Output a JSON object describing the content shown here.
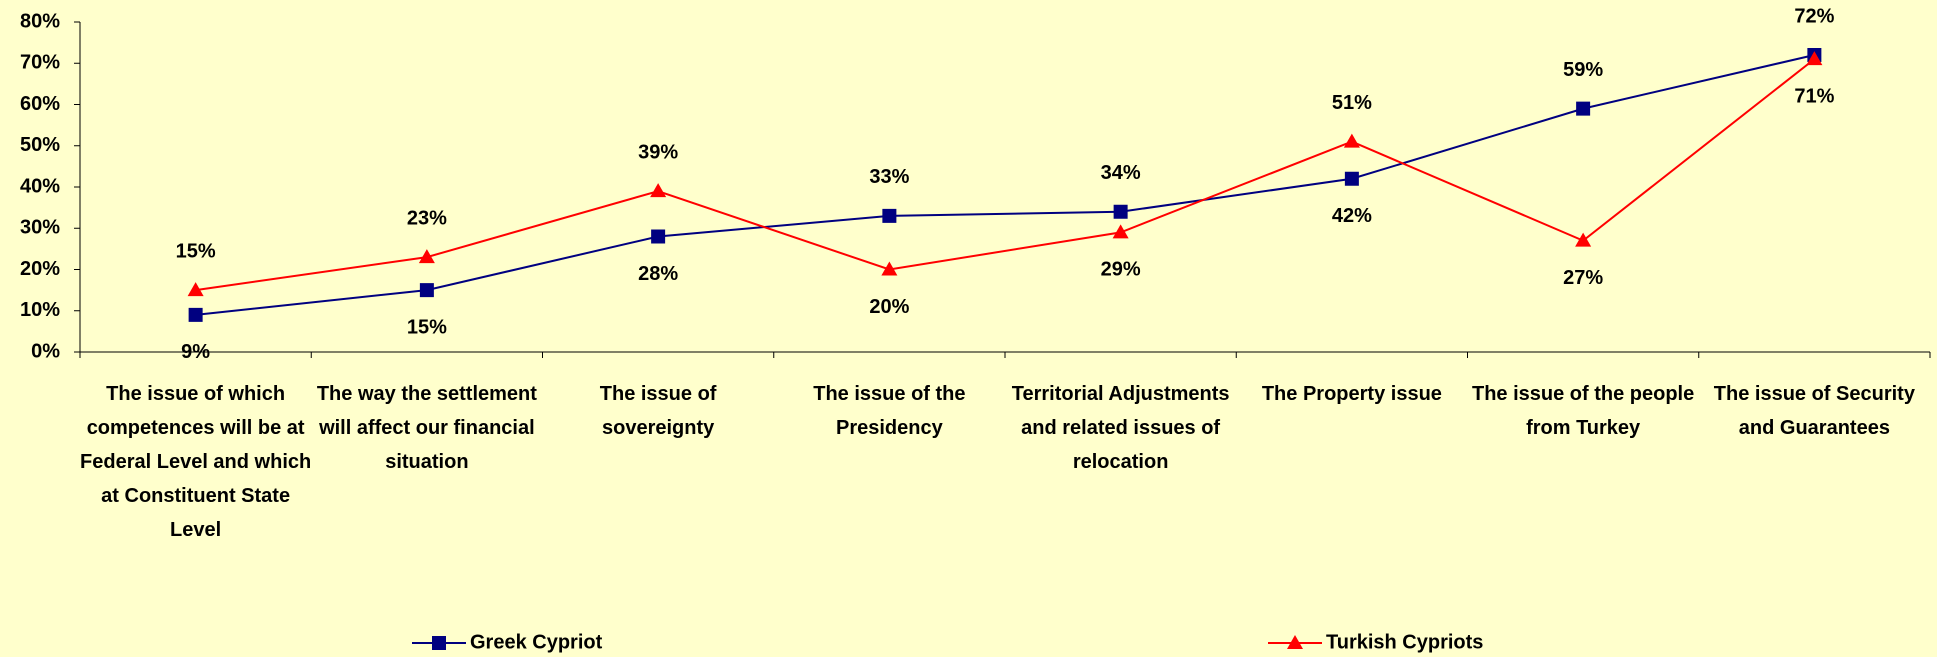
{
  "chart_data": {
    "type": "line",
    "categories": [
      "The issue of which competences will be at Federal Level and which at Constituent State Level",
      "The way the settlement will affect our financial situation",
      "The issue of sovereignty",
      "The issue of the Presidency",
      "Territorial Adjustments and related issues of relocation",
      "The Property issue",
      "The issue of the people from Turkey",
      "The issue of Security and Guarantees"
    ],
    "series": [
      {
        "name": "Greek Cypriot",
        "color": "#000080",
        "marker": "square",
        "values": [
          9,
          15,
          28,
          33,
          34,
          42,
          59,
          72
        ],
        "value_labels": [
          "9%",
          "15%",
          "28%",
          "33%",
          "34%",
          "42%",
          "59%",
          "72%"
        ]
      },
      {
        "name": "Turkish Cypriots",
        "color": "#FF0000",
        "marker": "triangle",
        "values": [
          15,
          23,
          39,
          20,
          29,
          51,
          27,
          71
        ],
        "value_labels": [
          "15%",
          "23%",
          "39%",
          "20%",
          "29%",
          "51%",
          "27%",
          "71%"
        ]
      }
    ],
    "ylim": [
      0,
      80
    ],
    "yticks": [
      {
        "value": 0,
        "label": "0%"
      },
      {
        "value": 10,
        "label": "10%"
      },
      {
        "value": 20,
        "label": "20%"
      },
      {
        "value": 30,
        "label": "30%"
      },
      {
        "value": 40,
        "label": "40%"
      },
      {
        "value": 50,
        "label": "50%"
      },
      {
        "value": 60,
        "label": "60%"
      },
      {
        "value": 70,
        "label": "70%"
      },
      {
        "value": 80,
        "label": "80%"
      }
    ],
    "grid": false,
    "legend": "bottom"
  }
}
